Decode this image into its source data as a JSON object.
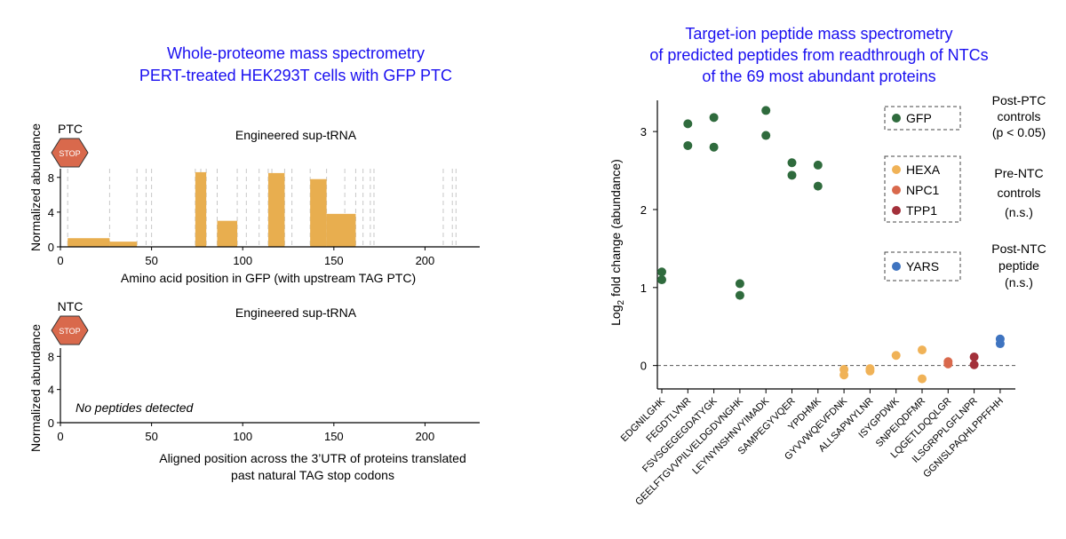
{
  "colors": {
    "title": "#1a0ff0",
    "bar": "#e8ae4f",
    "gridline": "#c8c8c8",
    "stop_sign": "#d9694c",
    "gfp": "#2f6b3d",
    "hexa": "#f0b257",
    "npc1": "#d9694c",
    "tpp1": "#a3303a",
    "yars": "#3f74c0"
  },
  "left": {
    "title_lines": [
      "Whole-proteome mass spectrometry",
      "PERT-treated HEK293T cells with GFP PTC"
    ],
    "stop_text": "STOP",
    "panel_top": {
      "badge": "PTC",
      "subtitle": "Engineered sup-tRNA",
      "ylabel": "Normalized abundance",
      "xlabel": "Amino acid position in GFP (with upstream TAG PTC)"
    },
    "panel_bottom": {
      "badge": "NTC",
      "subtitle": "Engineered sup-tRNA",
      "ylabel": "Normalized abundance",
      "xlabel_lines": [
        "Aligned position across the 3’UTR of proteins translated",
        "past natural TAG stop codons"
      ],
      "note": "No peptides detected"
    }
  },
  "right": {
    "title_lines": [
      "Target-ion peptide mass spectrometry",
      "of predicted peptides from readthrough of NTCs",
      "of the 69 most abundant proteins"
    ],
    "ylabel_pre": "Log",
    "ylabel_sub": "2",
    "ylabel_post": " fold change (abundance)",
    "legend": [
      {
        "group_lines": [
          "Post-PTC",
          "controls",
          "(p < 0.05)"
        ],
        "items": [
          {
            "label": "GFP",
            "color_key": "gfp"
          }
        ]
      },
      {
        "group_lines": [
          "Pre-NTC",
          "controls",
          "(n.s.)"
        ],
        "items": [
          {
            "label": "HEXA",
            "color_key": "hexa"
          },
          {
            "label": "NPC1",
            "color_key": "npc1"
          },
          {
            "label": "TPP1",
            "color_key": "tpp1"
          }
        ]
      },
      {
        "group_lines": [
          "Post-NTC",
          "peptide",
          "(n.s.)"
        ],
        "items": [
          {
            "label": "YARS",
            "color_key": "yars"
          }
        ]
      }
    ]
  },
  "chart_data": [
    {
      "type": "bar",
      "title": "Engineered sup-tRNA (PTC)",
      "xlabel": "Amino acid position in GFP (with upstream TAG PTC)",
      "ylabel": "Normalized abundance",
      "xlim": [
        0,
        230
      ],
      "ylim": [
        0,
        9
      ],
      "xticks": [
        0,
        50,
        100,
        150,
        200
      ],
      "yticks": [
        0,
        4,
        8
      ],
      "bars": [
        {
          "x0": 4,
          "x1": 27,
          "value": 1.0
        },
        {
          "x0": 27,
          "x1": 42,
          "value": 0.6
        },
        {
          "x0": 74,
          "x1": 80,
          "value": 8.6
        },
        {
          "x0": 86,
          "x1": 97,
          "value": 3.0
        },
        {
          "x0": 114,
          "x1": 123,
          "value": 8.5
        },
        {
          "x0": 137,
          "x1": 146,
          "value": 7.8
        },
        {
          "x0": 146,
          "x1": 162,
          "value": 3.8
        }
      ],
      "dashed_lines_at": [
        4,
        27,
        42,
        47,
        50,
        74,
        77,
        80,
        86,
        97,
        102,
        109,
        114,
        116,
        123,
        127,
        137,
        146,
        156,
        162,
        166,
        170,
        172,
        210,
        215,
        217
      ]
    },
    {
      "type": "bar",
      "title": "Engineered sup-tRNA (NTC)",
      "xlabel": "Aligned position across the 3’UTR of proteins translated past natural TAG stop codons",
      "ylabel": "Normalized abundance",
      "xlim": [
        0,
        230
      ],
      "ylim": [
        0,
        9
      ],
      "xticks": [
        0,
        50,
        100,
        150,
        200
      ],
      "yticks": [
        0,
        4,
        8
      ],
      "bars": [],
      "annotation": "No peptides detected"
    },
    {
      "type": "scatter",
      "title": "Target-ion peptide mass spectrometry of predicted peptides from readthrough of NTCs of the 69 most abundant proteins",
      "xlabel": "",
      "ylabel": "Log2 fold change (abundance)",
      "ylim": [
        -0.3,
        3.4
      ],
      "yticks": [
        0,
        1,
        2,
        3
      ],
      "reference_line_y": 0,
      "categories": [
        "EDGNILGHK",
        "FEGDTLVNR",
        "FSVSGEGEGDATYGK",
        "GEELFTGVVPILVELDGDVNGHK",
        "LEYNYNSHNVYIMADK",
        "SAMPEGYVQER",
        "YPDHMK",
        "GYVVWQEVFDNK",
        "ALLSAPWYLNR",
        "ISYGPDWK",
        "SNPEIQDFMR",
        "LQGETLDQQLGR",
        "ILSGRPPLGFLNPR",
        "GGNISLPAQHLPPFFHH"
      ],
      "series": [
        {
          "name": "GFP",
          "group": "Post-PTC controls (p < 0.05)",
          "points": [
            {
              "category": "EDGNILGHK",
              "y": [
                1.2,
                1.1
              ]
            },
            {
              "category": "FEGDTLVNR",
              "y": [
                3.1,
                2.82
              ]
            },
            {
              "category": "FSVSGEGEGDATYGK",
              "y": [
                3.18,
                2.8
              ]
            },
            {
              "category": "GEELFTGVVPILVELDGDVNGHK",
              "y": [
                1.05,
                0.9
              ]
            },
            {
              "category": "LEYNYNSHNVYIMADK",
              "y": [
                3.27,
                2.95
              ]
            },
            {
              "category": "SAMPEGYVQER",
              "y": [
                2.6,
                2.44
              ]
            },
            {
              "category": "YPDHMK",
              "y": [
                2.57,
                2.3
              ]
            }
          ]
        },
        {
          "name": "HEXA",
          "group": "Pre-NTC controls (n.s.)",
          "points": [
            {
              "category": "GYVVWQEVFDNK",
              "y": [
                -0.05,
                -0.12
              ]
            },
            {
              "category": "ALLSAPWYLNR",
              "y": [
                -0.04,
                -0.07
              ]
            },
            {
              "category": "ISYGPDWK",
              "y": [
                0.13
              ]
            },
            {
              "category": "SNPEIQDFMR",
              "y": [
                0.2,
                -0.17
              ]
            }
          ]
        },
        {
          "name": "NPC1",
          "group": "Pre-NTC controls (n.s.)",
          "points": [
            {
              "category": "LQGETLDQQLGR",
              "y": [
                0.05,
                0.02
              ]
            }
          ]
        },
        {
          "name": "TPP1",
          "group": "Pre-NTC controls (n.s.)",
          "points": [
            {
              "category": "ILSGRPPLGFLNPR",
              "y": [
                0.11,
                0.01
              ]
            }
          ]
        },
        {
          "name": "YARS",
          "group": "Post-NTC peptide (n.s.)",
          "points": [
            {
              "category": "GGNISLPAQHLPPFFHH",
              "y": [
                0.34,
                0.28
              ]
            }
          ]
        }
      ]
    }
  ]
}
